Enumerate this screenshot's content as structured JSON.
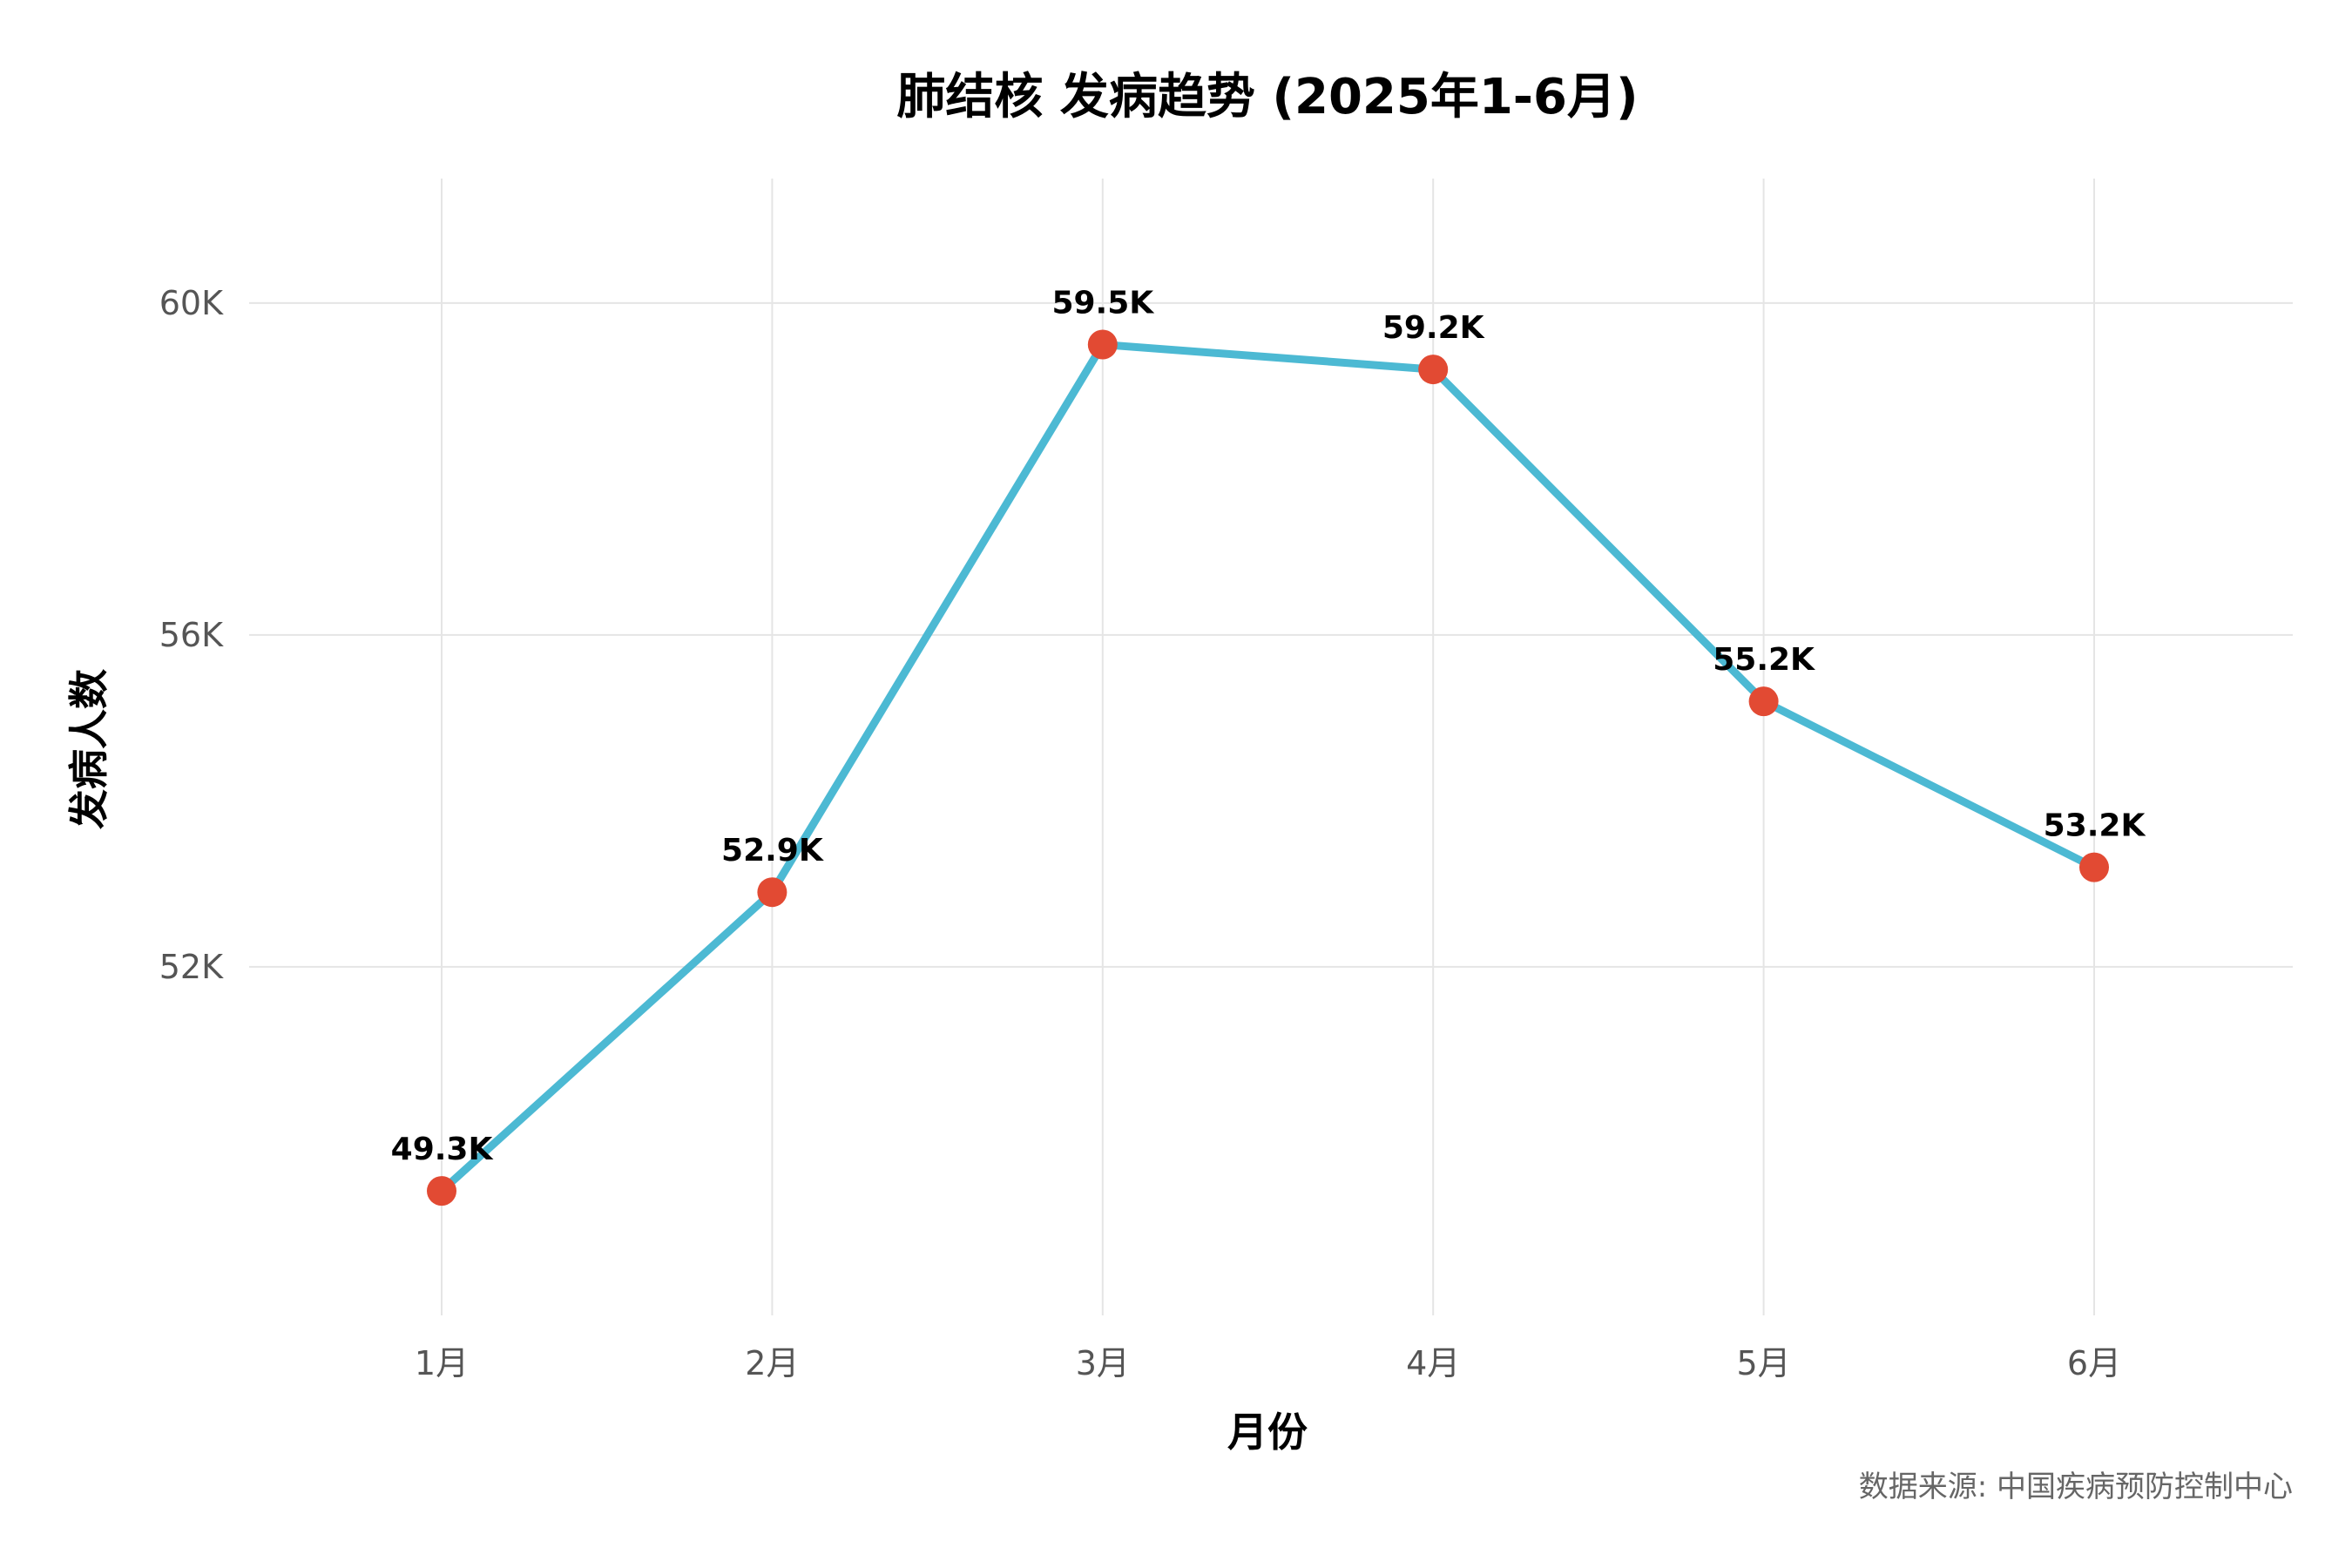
{
  "chart_data": {
    "type": "line",
    "title": "肺结核 发病趋势 (2025年1-6月)",
    "xlabel": "月份",
    "ylabel": "发病人数",
    "categories": [
      "1月",
      "2月",
      "3月",
      "4月",
      "5月",
      "6月"
    ],
    "series": [
      {
        "values": [
          49300,
          52900,
          59500,
          59200,
          55200,
          53200
        ],
        "labels": [
          "49.3K",
          "52.9K",
          "59.5K",
          "59.2K",
          "55.2K",
          "53.2K"
        ]
      }
    ],
    "y_ticks": [
      52000,
      56000,
      60000
    ],
    "y_tick_labels": [
      "52K",
      "56K",
      "60K"
    ],
    "ylim": [
      47800,
      61500
    ],
    "grid": true,
    "line_color": "#4cb9d3",
    "marker_color": "#e24a33",
    "source": "数据来源: 中国疾病预防控制中心"
  }
}
